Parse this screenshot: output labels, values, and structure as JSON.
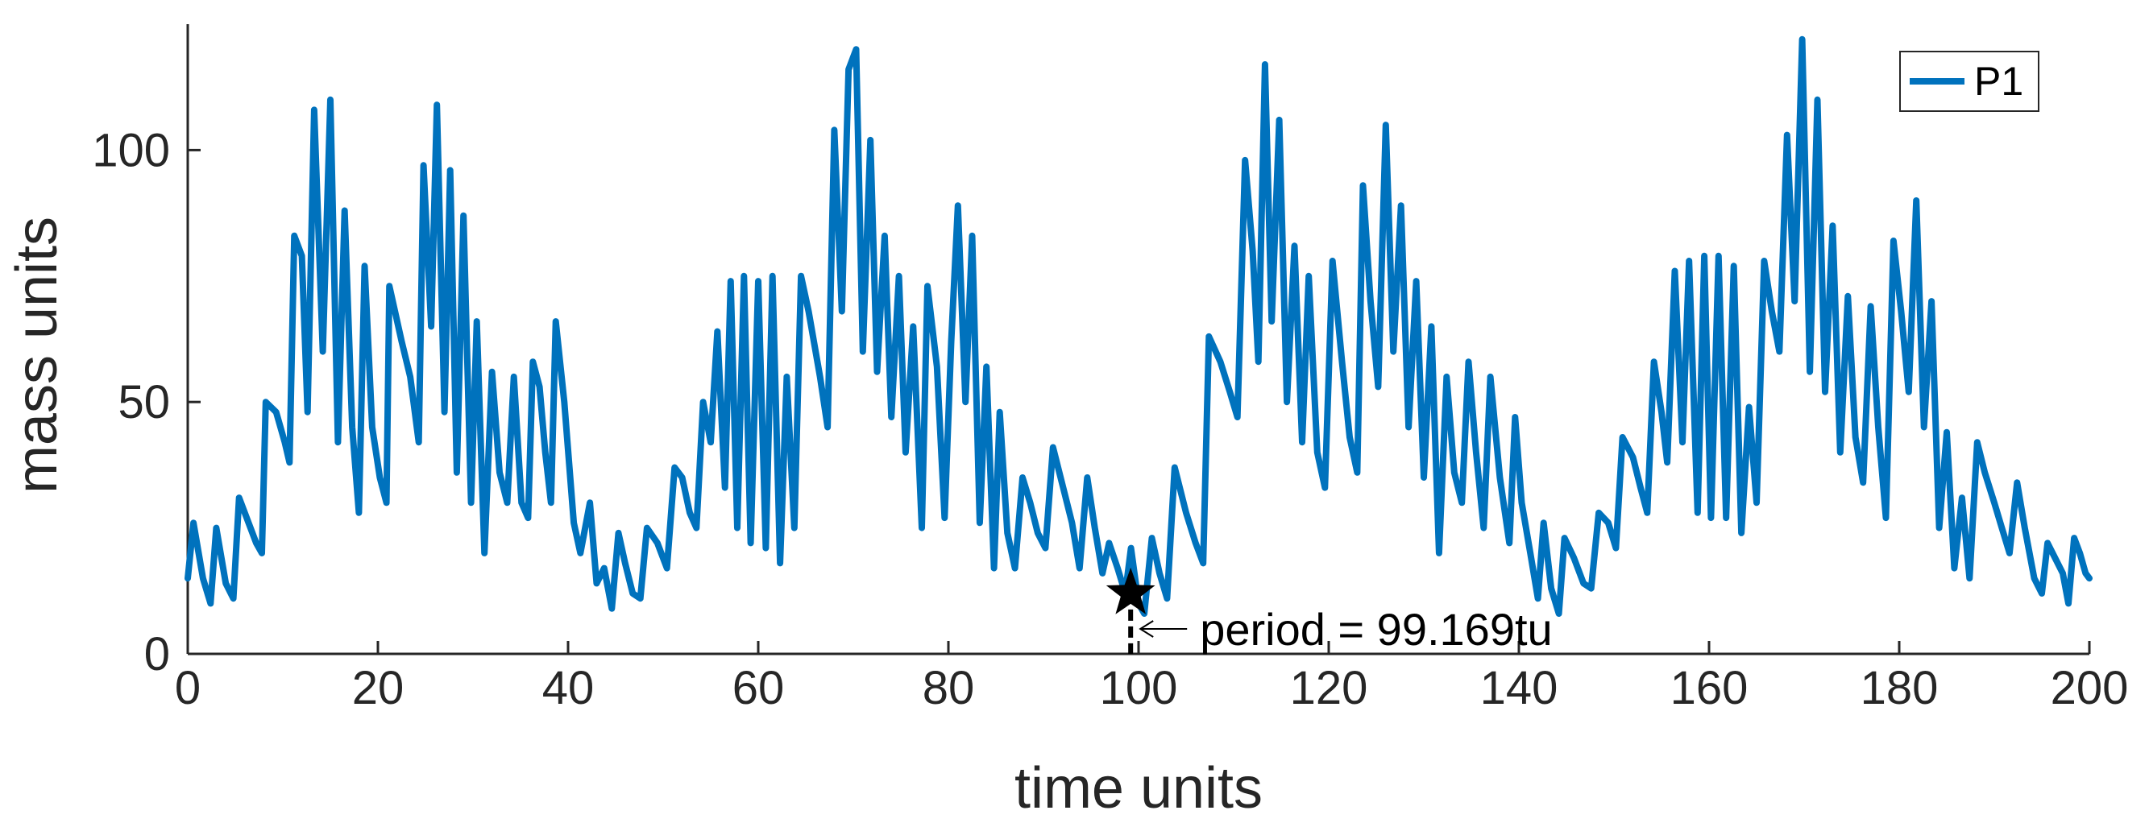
{
  "chart_data": {
    "type": "line",
    "xlabel": "time units",
    "ylabel": "mass units",
    "xlim": [
      0,
      200
    ],
    "ylim": [
      0,
      125
    ],
    "xticks": [
      0,
      20,
      40,
      60,
      80,
      100,
      120,
      140,
      160,
      180,
      200
    ],
    "yticks": [
      0,
      50,
      100
    ],
    "grid": false,
    "legend_position": "top-right",
    "series": [
      {
        "name": "P1",
        "color": "#0072BD",
        "points": [
          [
            0.0,
            15
          ],
          [
            0.6,
            26
          ],
          [
            1.6,
            15
          ],
          [
            2.4,
            10
          ],
          [
            3.0,
            25
          ],
          [
            4.0,
            14
          ],
          [
            4.8,
            11
          ],
          [
            5.4,
            31
          ],
          [
            6.4,
            26
          ],
          [
            7.2,
            22
          ],
          [
            7.8,
            20
          ],
          [
            8.2,
            50
          ],
          [
            9.3,
            48
          ],
          [
            10.2,
            42
          ],
          [
            10.7,
            38
          ],
          [
            11.2,
            83
          ],
          [
            12.0,
            79
          ],
          [
            12.6,
            48
          ],
          [
            13.3,
            108
          ],
          [
            14.2,
            60
          ],
          [
            15.0,
            110
          ],
          [
            15.8,
            42
          ],
          [
            16.5,
            88
          ],
          [
            17.3,
            45
          ],
          [
            18.0,
            28
          ],
          [
            18.6,
            77
          ],
          [
            19.4,
            45
          ],
          [
            20.2,
            35
          ],
          [
            20.9,
            30
          ],
          [
            21.2,
            73
          ],
          [
            22.5,
            62
          ],
          [
            23.4,
            55
          ],
          [
            24.3,
            42
          ],
          [
            24.8,
            97
          ],
          [
            25.6,
            65
          ],
          [
            26.2,
            109
          ],
          [
            27.0,
            48
          ],
          [
            27.6,
            96
          ],
          [
            28.3,
            36
          ],
          [
            29.0,
            87
          ],
          [
            29.8,
            30
          ],
          [
            30.4,
            66
          ],
          [
            31.2,
            20
          ],
          [
            32.0,
            56
          ],
          [
            32.8,
            36
          ],
          [
            33.6,
            30
          ],
          [
            34.3,
            55
          ],
          [
            35.1,
            30
          ],
          [
            35.8,
            27
          ],
          [
            36.3,
            58
          ],
          [
            37.0,
            53
          ],
          [
            37.6,
            40
          ],
          [
            38.2,
            30
          ],
          [
            38.7,
            66
          ],
          [
            39.6,
            50
          ],
          [
            40.6,
            26
          ],
          [
            41.3,
            20
          ],
          [
            42.3,
            30
          ],
          [
            43.0,
            14
          ],
          [
            43.8,
            17
          ],
          [
            44.6,
            9
          ],
          [
            45.3,
            24
          ],
          [
            46.0,
            18
          ],
          [
            46.8,
            12
          ],
          [
            47.6,
            11
          ],
          [
            48.3,
            25
          ],
          [
            49.4,
            22
          ],
          [
            50.4,
            17
          ],
          [
            51.2,
            37
          ],
          [
            52.0,
            35
          ],
          [
            52.8,
            28
          ],
          [
            53.5,
            25
          ],
          [
            54.2,
            50
          ],
          [
            55.0,
            42
          ],
          [
            55.7,
            64
          ],
          [
            56.5,
            33
          ],
          [
            57.1,
            74
          ],
          [
            57.8,
            25
          ],
          [
            58.5,
            75
          ],
          [
            59.2,
            22
          ],
          [
            60.0,
            74
          ],
          [
            60.8,
            21
          ],
          [
            61.5,
            75
          ],
          [
            62.3,
            18
          ],
          [
            63.0,
            55
          ],
          [
            63.8,
            25
          ],
          [
            64.5,
            75
          ],
          [
            65.3,
            68
          ],
          [
            66.5,
            55
          ],
          [
            67.3,
            45
          ],
          [
            68.0,
            104
          ],
          [
            68.8,
            68
          ],
          [
            69.5,
            116
          ],
          [
            70.3,
            120
          ],
          [
            71.0,
            60
          ],
          [
            71.8,
            102
          ],
          [
            72.5,
            56
          ],
          [
            73.3,
            83
          ],
          [
            74.0,
            47
          ],
          [
            74.8,
            75
          ],
          [
            75.5,
            40
          ],
          [
            76.3,
            65
          ],
          [
            77.2,
            25
          ],
          [
            77.8,
            73
          ],
          [
            78.8,
            57
          ],
          [
            79.6,
            27
          ],
          [
            80.3,
            62
          ],
          [
            81.0,
            89
          ],
          [
            81.8,
            50
          ],
          [
            82.5,
            83
          ],
          [
            83.3,
            26
          ],
          [
            84.0,
            57
          ],
          [
            84.8,
            17
          ],
          [
            85.4,
            48
          ],
          [
            86.2,
            24
          ],
          [
            87.0,
            17
          ],
          [
            87.8,
            35
          ],
          [
            88.6,
            30
          ],
          [
            89.4,
            24
          ],
          [
            90.2,
            21
          ],
          [
            91.0,
            41
          ],
          [
            92.2,
            32
          ],
          [
            93.0,
            26
          ],
          [
            93.8,
            17
          ],
          [
            94.6,
            35
          ],
          [
            95.4,
            25
          ],
          [
            96.2,
            16
          ],
          [
            96.9,
            22
          ],
          [
            97.8,
            17
          ],
          [
            98.6,
            12
          ],
          [
            99.2,
            21
          ],
          [
            100.0,
            10
          ],
          [
            100.6,
            8
          ],
          [
            101.4,
            23
          ],
          [
            102.2,
            16
          ],
          [
            103.0,
            11
          ],
          [
            103.8,
            37
          ],
          [
            105.0,
            28
          ],
          [
            106.0,
            22
          ],
          [
            106.8,
            18
          ],
          [
            107.4,
            63
          ],
          [
            108.6,
            58
          ],
          [
            109.6,
            52
          ],
          [
            110.4,
            47
          ],
          [
            111.2,
            98
          ],
          [
            112.0,
            80
          ],
          [
            112.6,
            58
          ],
          [
            113.3,
            117
          ],
          [
            114.0,
            66
          ],
          [
            114.8,
            106
          ],
          [
            115.6,
            50
          ],
          [
            116.4,
            81
          ],
          [
            117.2,
            42
          ],
          [
            117.9,
            75
          ],
          [
            118.8,
            40
          ],
          [
            119.6,
            33
          ],
          [
            120.4,
            78
          ],
          [
            121.4,
            58
          ],
          [
            122.2,
            43
          ],
          [
            123.0,
            36
          ],
          [
            123.6,
            93
          ],
          [
            124.4,
            70
          ],
          [
            125.2,
            53
          ],
          [
            126.0,
            105
          ],
          [
            126.8,
            60
          ],
          [
            127.6,
            89
          ],
          [
            128.4,
            45
          ],
          [
            129.2,
            74
          ],
          [
            130.0,
            35
          ],
          [
            130.8,
            65
          ],
          [
            131.6,
            20
          ],
          [
            132.4,
            55
          ],
          [
            133.2,
            36
          ],
          [
            134.0,
            30
          ],
          [
            134.7,
            58
          ],
          [
            135.5,
            40
          ],
          [
            136.3,
            25
          ],
          [
            137.0,
            55
          ],
          [
            138.0,
            35
          ],
          [
            139.0,
            22
          ],
          [
            139.6,
            47
          ],
          [
            140.3,
            30
          ],
          [
            141.2,
            20
          ],
          [
            142.0,
            11
          ],
          [
            142.6,
            26
          ],
          [
            143.4,
            13
          ],
          [
            144.2,
            8
          ],
          [
            144.8,
            23
          ],
          [
            145.8,
            19
          ],
          [
            146.8,
            14
          ],
          [
            147.6,
            13
          ],
          [
            148.4,
            28
          ],
          [
            149.4,
            26
          ],
          [
            150.2,
            21
          ],
          [
            150.9,
            43
          ],
          [
            152.0,
            39
          ],
          [
            152.8,
            33
          ],
          [
            153.5,
            28
          ],
          [
            154.2,
            58
          ],
          [
            155.0,
            48
          ],
          [
            155.6,
            38
          ],
          [
            156.4,
            76
          ],
          [
            157.2,
            42
          ],
          [
            157.9,
            78
          ],
          [
            158.8,
            28
          ],
          [
            159.5,
            79
          ],
          [
            160.2,
            27
          ],
          [
            161.0,
            79
          ],
          [
            161.8,
            27
          ],
          [
            162.6,
            77
          ],
          [
            163.4,
            24
          ],
          [
            164.2,
            49
          ],
          [
            165.0,
            30
          ],
          [
            165.8,
            78
          ],
          [
            166.6,
            68
          ],
          [
            167.4,
            60
          ],
          [
            168.2,
            103
          ],
          [
            169.0,
            70
          ],
          [
            169.8,
            122
          ],
          [
            170.6,
            56
          ],
          [
            171.4,
            110
          ],
          [
            172.2,
            52
          ],
          [
            173.0,
            85
          ],
          [
            173.8,
            40
          ],
          [
            174.6,
            71
          ],
          [
            175.4,
            43
          ],
          [
            176.2,
            34
          ],
          [
            177.0,
            69
          ],
          [
            177.8,
            45
          ],
          [
            178.6,
            27
          ],
          [
            179.4,
            82
          ],
          [
            180.2,
            68
          ],
          [
            181.0,
            52
          ],
          [
            181.8,
            90
          ],
          [
            182.6,
            45
          ],
          [
            183.4,
            70
          ],
          [
            184.2,
            25
          ],
          [
            185.0,
            44
          ],
          [
            185.8,
            17
          ],
          [
            186.6,
            31
          ],
          [
            187.4,
            15
          ],
          [
            188.2,
            42
          ],
          [
            189.0,
            36
          ],
          [
            190.0,
            30
          ],
          [
            190.8,
            25
          ],
          [
            191.6,
            20
          ],
          [
            192.4,
            34
          ],
          [
            193.2,
            25
          ],
          [
            194.2,
            15
          ],
          [
            195.0,
            12
          ],
          [
            195.6,
            22
          ],
          [
            196.4,
            19
          ],
          [
            197.2,
            16
          ],
          [
            197.8,
            10
          ],
          [
            198.4,
            23
          ],
          [
            199.0,
            20
          ],
          [
            199.6,
            16
          ],
          [
            200.0,
            15
          ]
        ]
      }
    ],
    "annotations": [
      {
        "label": "period = 99.169tu",
        "marker": "star",
        "x": 99.169,
        "y": 12,
        "marker_color": "#000000"
      }
    ]
  }
}
